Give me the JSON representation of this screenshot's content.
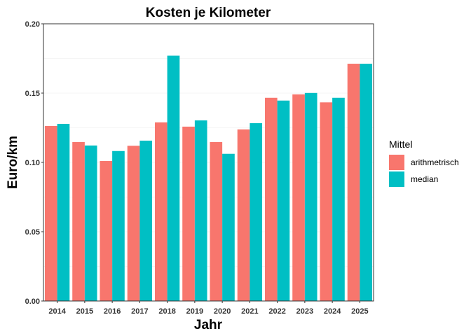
{
  "chart_data": {
    "type": "bar",
    "title": "Kosten je Kilometer",
    "xlabel": "Jahr",
    "ylabel": "Euro/km",
    "ylim": [
      0,
      0.2
    ],
    "yticks": [
      "0.00",
      "0.05",
      "0.10",
      "0.15",
      "0.20"
    ],
    "grid": true,
    "legend": {
      "title": "Mittel",
      "placement": "right"
    },
    "categories": [
      "2014",
      "2015",
      "2016",
      "2017",
      "2018",
      "2019",
      "2020",
      "2021",
      "2022",
      "2023",
      "2024",
      "2025"
    ],
    "series": [
      {
        "name": "arithmetrisch",
        "color": "#F8766D",
        "values": [
          0.1263,
          0.1147,
          0.101,
          0.112,
          0.1289,
          0.1258,
          0.1147,
          0.1238,
          0.1466,
          0.1491,
          0.1433,
          0.1712
        ]
      },
      {
        "name": "median",
        "color": "#00BFC4",
        "values": [
          0.1278,
          0.1122,
          0.1082,
          0.1157,
          0.177,
          0.1303,
          0.1062,
          0.1283,
          0.1446,
          0.1501,
          0.1466,
          0.1712
        ]
      }
    ]
  }
}
